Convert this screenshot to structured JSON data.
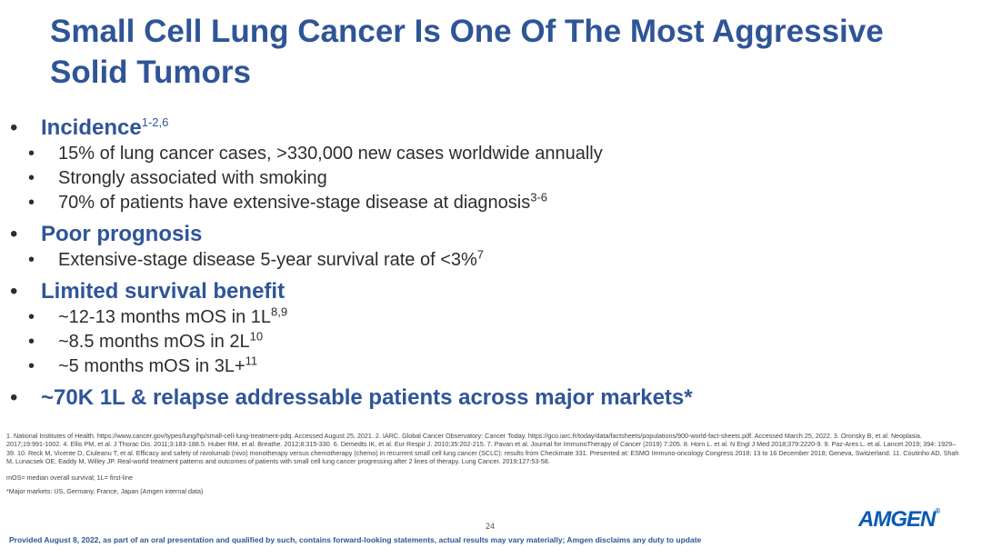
{
  "title": "Small Cell Lung Cancer Is One Of The Most Aggressive Solid Tumors",
  "sections": [
    {
      "heading": "Incidence",
      "heading_sup": "1-2,6",
      "items": [
        {
          "text": "15% of lung cancer cases, >330,000 new cases worldwide annually",
          "sup": ""
        },
        {
          "text": "Strongly associated with smoking",
          "sup": ""
        },
        {
          "text": "70% of patients have extensive-stage disease at diagnosis",
          "sup": "3-6"
        }
      ]
    },
    {
      "heading": "Poor prognosis",
      "heading_sup": "",
      "items": [
        {
          "text": "Extensive-stage disease 5-year survival rate of <3%",
          "sup": "7"
        }
      ]
    },
    {
      "heading": "Limited survival benefit",
      "heading_sup": "",
      "items": [
        {
          "text": "~12-13 months mOS in 1L",
          "sup": "8,9"
        },
        {
          "text": "~8.5 months mOS in 2L",
          "sup": "10"
        },
        {
          "text": "~5 months mOS in 3L+",
          "sup": "11"
        }
      ]
    },
    {
      "heading": "~70K 1L & relapse addressable patients across major markets*",
      "heading_sup": "",
      "items": []
    }
  ],
  "bullet_symbol": "•",
  "references": "1. National Institutes of Health. https://www.cancer.gov/types/lung/hp/small-cell-lung-treatment-pdq. Accessed August 25, 2021. 2. IARC. Global Cancer Observatory: Cancer Today. https://gco.iarc.fr/today/data/factsheets/populations/900-world-fact-sheets.pdf. Accessed March 25, 2022. 3. Oronsky B, et al. Neoplasia. 2017;19:991-1002. 4. Ellis PM, et al. J Thorac Dis. 2011;3:183-188.5. Huber RM, et al. Breathe. 2012;8:315-330. 6. Demedts IK, et al. Eur Respir J. 2010;35:202-215. 7. Pavan et al. Journal for ImmunoTherapy of Cancer (2019) 7:205. 8. Horn L. et al. N Engl J Med 2018;379:2220-9. 9. Paz-Ares L. et al. Lancet 2019; 394: 1929–39. 10. Reck M, Vicente D, Ciuleanu T, et al. Efficacy and safety of nivolumab (nivo) monotherapy versus chemotherapy (chemo) in recurrent small cell lung cancer (SCLC): results from Checkmate 331. Presented at: ESMO Immuno-oncology Congress 2018; 13 to 16 December 2018; Geneva, Switzerland. 11. Coutinho AD, Shah M, Lunacsek OE, Eaddy M, Willey JP. Real-world treatment patterns and outcomes of patients with small cell lung cancer progressing after 2 lines of therapy. Lung Cancer. 2019;127:53-58.",
  "abbreviations": "mOS= median overall survival; 1L= first-line",
  "major_markets_note": "*Major markets: US, Germany, France, Japan (Amgen internal data)",
  "page_number": "24",
  "footer": "Provided August 8, 2022, as part of an oral presentation and qualified by such, contains forward-looking statements, actual results may vary materially; Amgen disclaims any duty to update",
  "logo_text": "AMGEN",
  "logo_mark": "®",
  "colors": {
    "title": "#2f5597",
    "logo": "#0a5ab5",
    "body": "#2d2d2d"
  }
}
